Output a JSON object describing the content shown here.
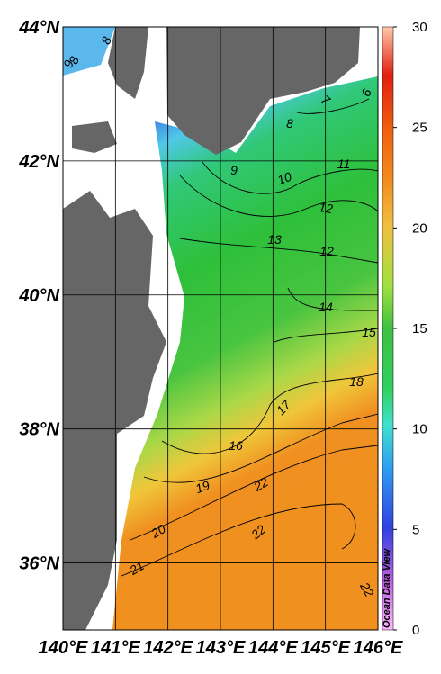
{
  "map": {
    "lon_range": [
      140,
      146
    ],
    "lat_range": [
      35,
      44
    ],
    "lon_ticks": [
      {
        "value": 140,
        "label": "140°E"
      },
      {
        "value": 141,
        "label": "141°E"
      },
      {
        "value": 142,
        "label": "142°E"
      },
      {
        "value": 143,
        "label": "143°E"
      },
      {
        "value": 144,
        "label": "144°E"
      },
      {
        "value": 145,
        "label": "145°E"
      },
      {
        "value": 146,
        "label": "146°E"
      }
    ],
    "lat_ticks": [
      {
        "value": 36,
        "label": "36°N"
      },
      {
        "value": 38,
        "label": "38°N"
      },
      {
        "value": 40,
        "label": "40°N"
      },
      {
        "value": 42,
        "label": "42°N"
      },
      {
        "value": 44,
        "label": "44°N"
      }
    ],
    "colorbar": {
      "range": [
        0,
        30
      ],
      "ticks": [
        0,
        5,
        10,
        15,
        20,
        25,
        30
      ]
    },
    "watermark": "Ocean Data View",
    "contour_labels": [
      8,
      8,
      9,
      6,
      7,
      8,
      9,
      10,
      11,
      12,
      13,
      12,
      14,
      15,
      18,
      17,
      16,
      19,
      22,
      20,
      22,
      21,
      22
    ]
  }
}
